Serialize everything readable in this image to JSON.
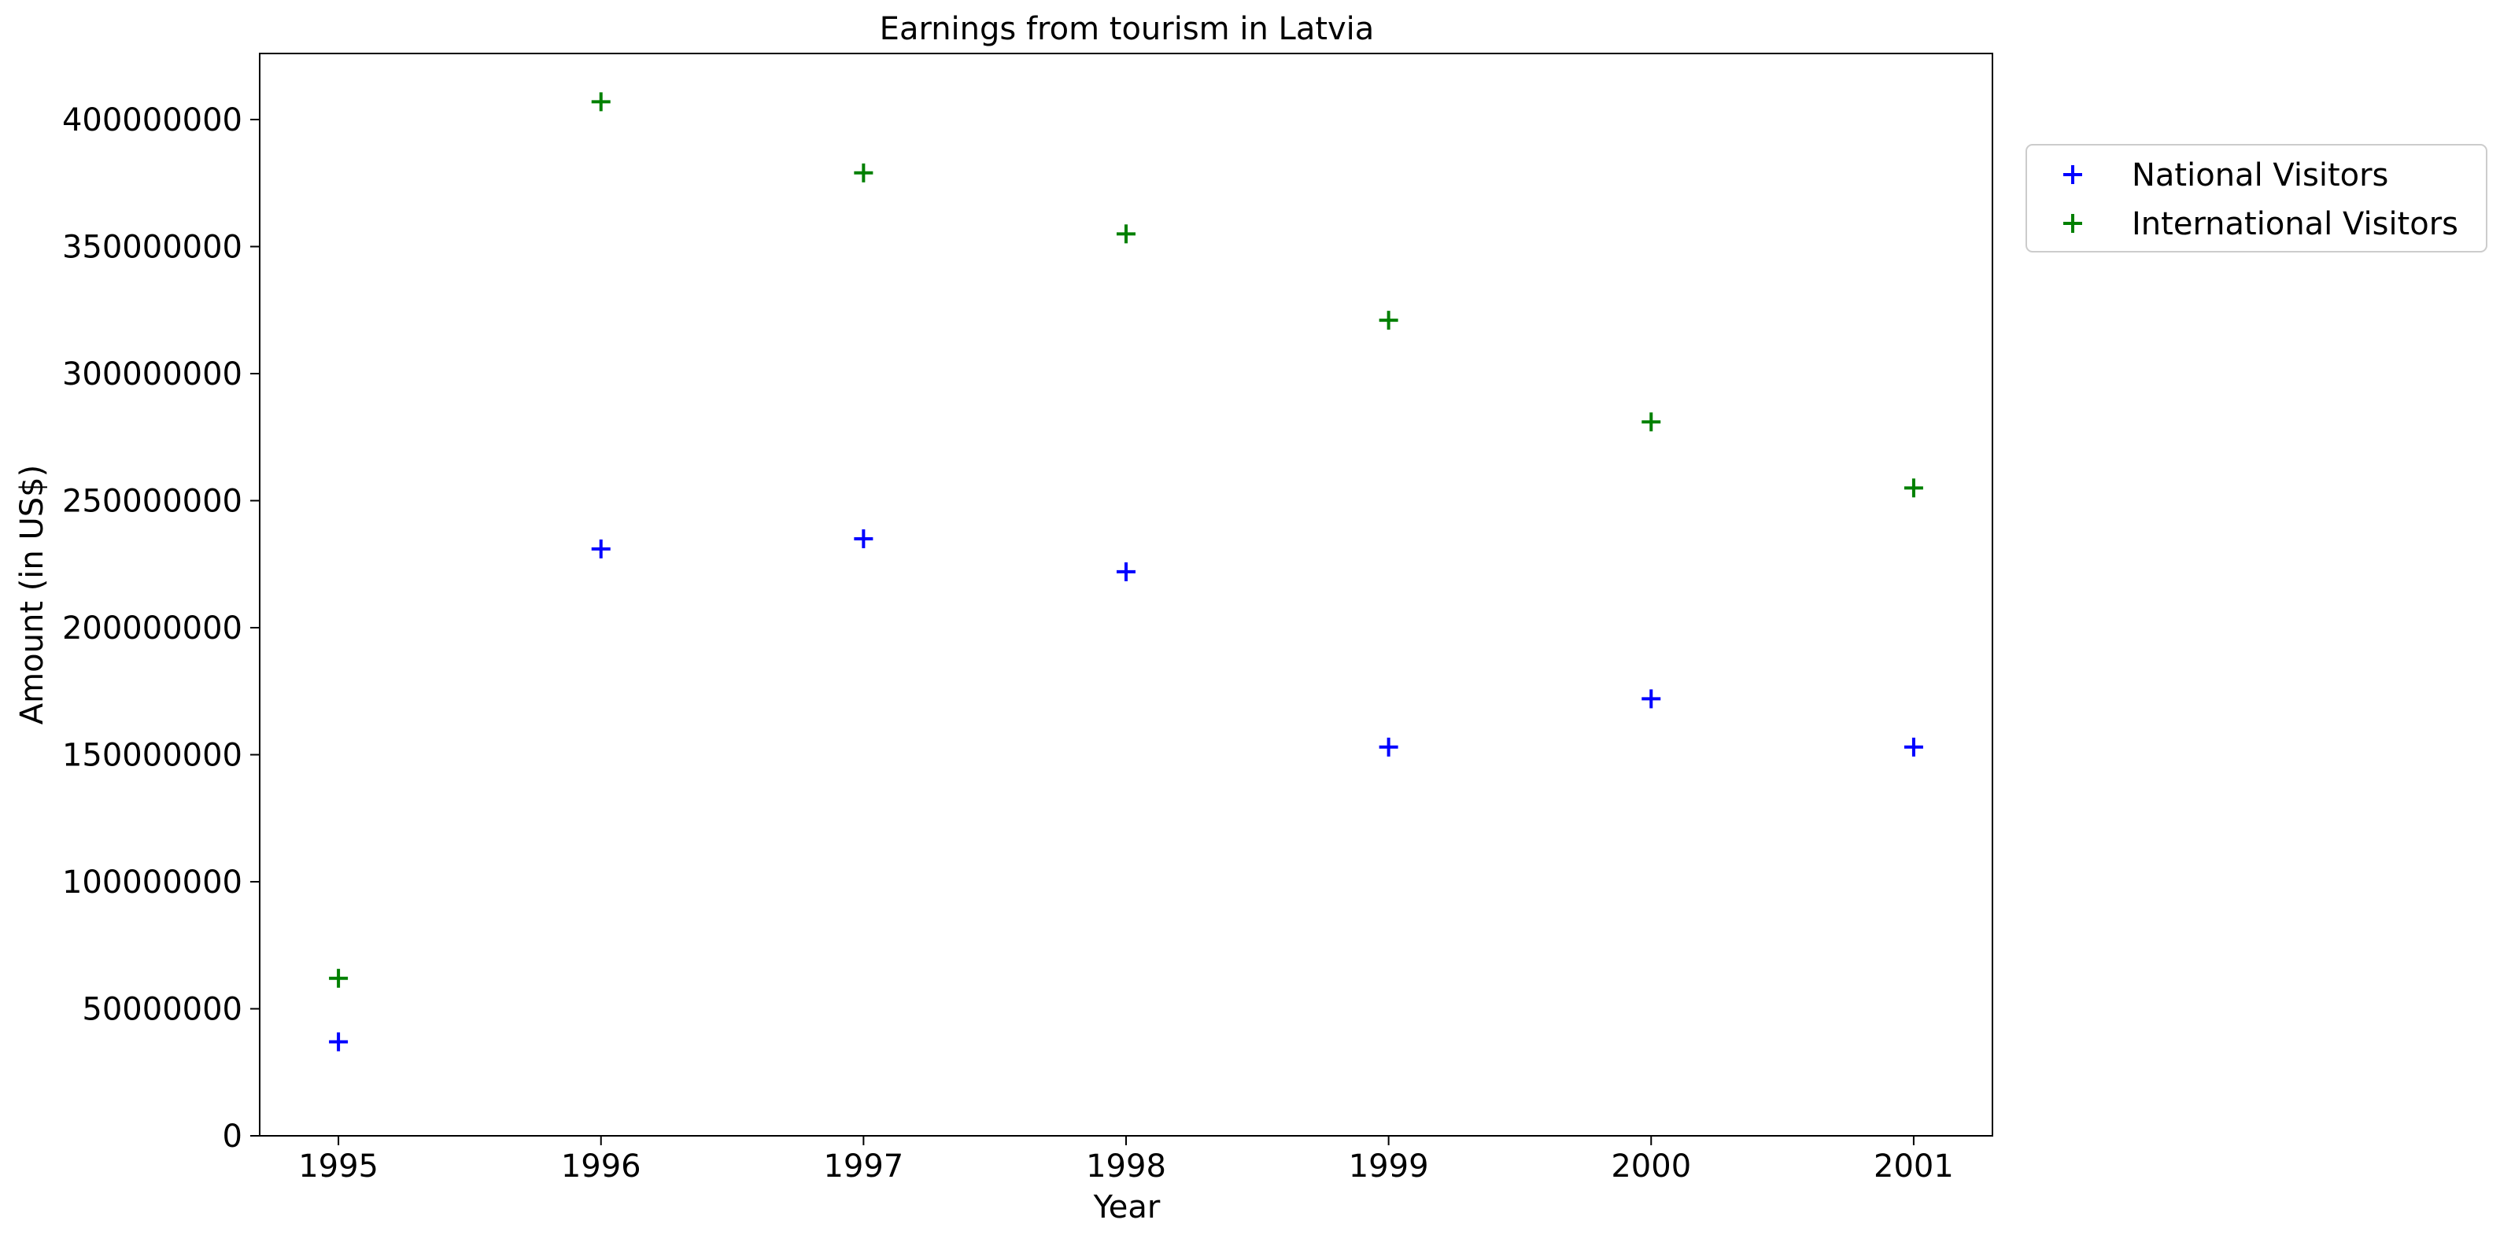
{
  "chart_data": {
    "type": "scatter",
    "title": "Earnings from tourism in Latvia",
    "xlabel": "Year",
    "ylabel": "Amount (in US$)",
    "x": [
      1995,
      1996,
      1997,
      1998,
      1999,
      2000,
      2001
    ],
    "xticks": [
      "1995",
      "1996",
      "1997",
      "1998",
      "1999",
      "2000",
      "2001"
    ],
    "xlim": [
      1994.7,
      2001.3
    ],
    "yticks": [
      0,
      50000000,
      100000000,
      150000000,
      200000000,
      250000000,
      300000000,
      350000000,
      400000000
    ],
    "yticklabels": [
      "0",
      "50000000",
      "100000000",
      "150000000",
      "200000000",
      "250000000",
      "300000000",
      "350000000",
      "400000000"
    ],
    "ylim": [
      0,
      426000000
    ],
    "grid": false,
    "legend_position": "outside-top-right",
    "marker": "+",
    "series": [
      {
        "name": "National Visitors",
        "color": "#0000ff",
        "values": [
          37000000,
          231000000,
          235000000,
          222000000,
          153000000,
          172000000,
          153000000
        ]
      },
      {
        "name": "International Visitors",
        "color": "#008000",
        "values": [
          62000000,
          407000000,
          379000000,
          355000000,
          321000000,
          281000000,
          255000000
        ]
      }
    ]
  }
}
